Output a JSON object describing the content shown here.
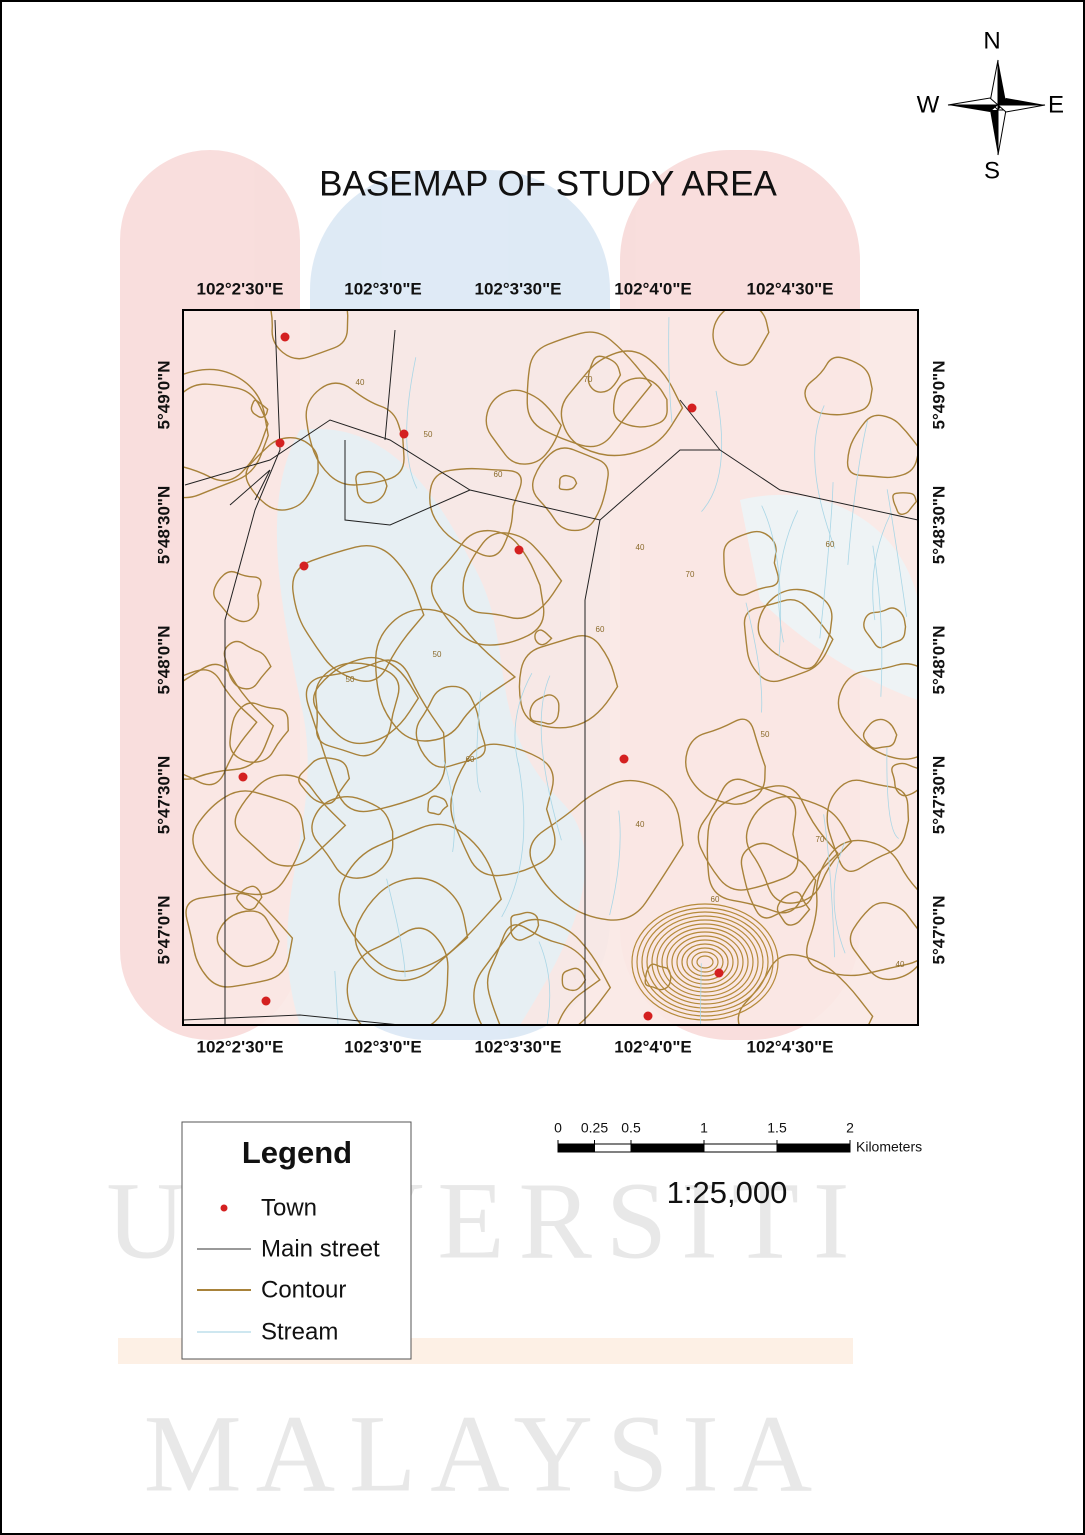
{
  "title": "BASEMAP OF STUDY AREA",
  "north_arrow": {
    "n": "N",
    "s": "S",
    "w": "W",
    "e": "E"
  },
  "longitude_labels": [
    "102°2'30\"E",
    "102°3'0\"E",
    "102°3'30\"E",
    "102°4'0\"E",
    "102°4'30\"E"
  ],
  "latitude_labels": [
    "5°49'0\"N",
    "5°48'30\"N",
    "5°48'0\"N",
    "5°47'30\"N",
    "5°47'0\"N"
  ],
  "contour_labels": [
    40,
    50,
    60,
    70,
    50,
    60,
    40,
    70,
    60,
    50,
    40,
    60,
    70,
    50,
    60,
    40
  ],
  "legend": {
    "title": "Legend",
    "items": [
      "Town",
      "Main street",
      "Contour",
      "Stream"
    ]
  },
  "scale_bar": {
    "ticks": [
      0,
      0.25,
      0.5,
      1,
      1.5,
      2
    ],
    "xlim": [
      0,
      2
    ],
    "unit": "Kilometers",
    "ratio": "1:25,000"
  },
  "watermark": [
    "UNIVERSITI",
    "MALAYSIA"
  ]
}
